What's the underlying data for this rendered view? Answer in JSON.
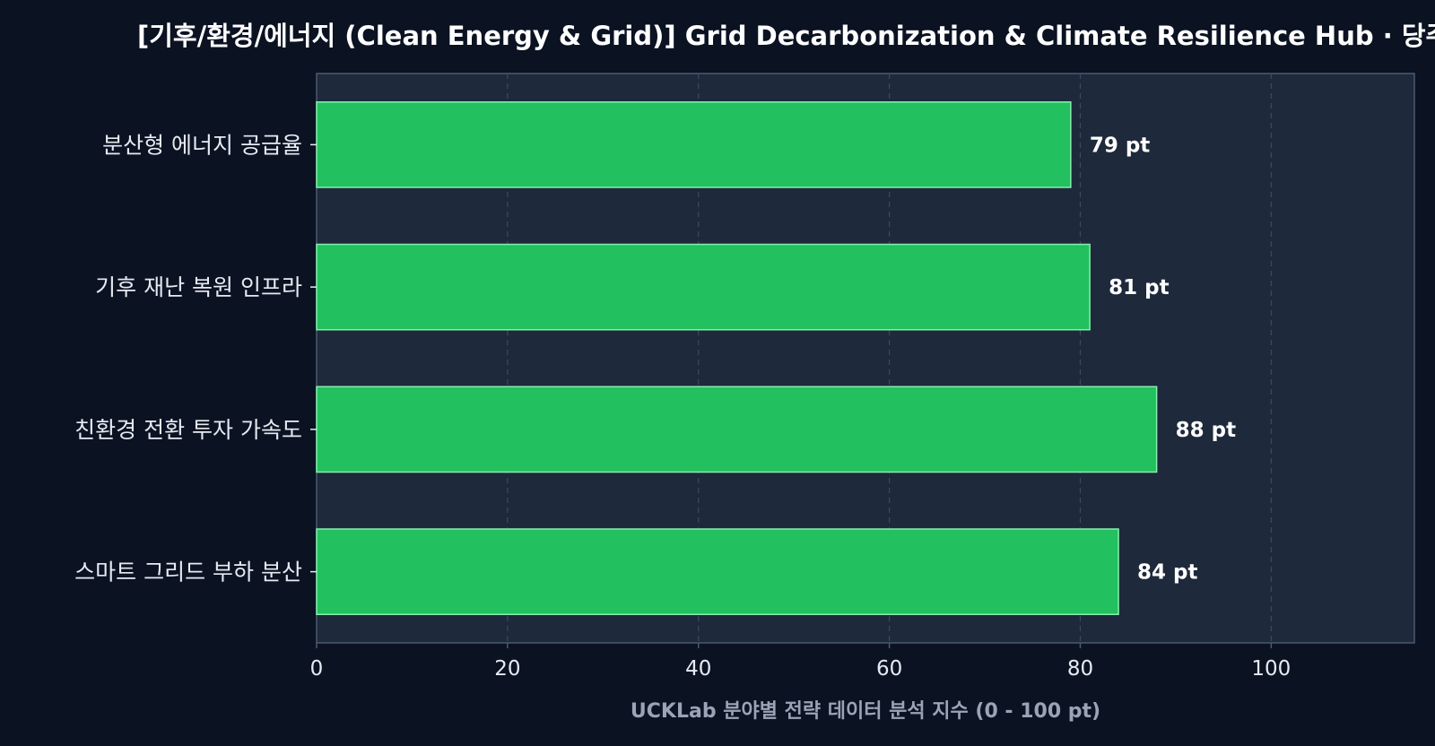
{
  "chart_data": {
    "type": "bar",
    "orientation": "horizontal",
    "title": "[기후/환경/에너지 (Clean Energy & Grid)] Grid Decarbonization & Climate Resilience Hub · 당주",
    "xlabel": "UCKLab 분야별 전략 데이터 분석 지수 (0 - 100 pt)",
    "ylabel": "",
    "categories": [
      "분산형 에너지 공급율",
      "기후 재난 복원 인프라",
      "친환경 전환 투자 가속도",
      "스마트 그리드 부하 분산"
    ],
    "values": [
      79,
      81,
      88,
      84
    ],
    "value_labels": [
      "79 pt",
      "81 pt",
      "88 pt",
      "84 pt"
    ],
    "xlim": [
      0,
      115
    ],
    "xticks": [
      0,
      20,
      40,
      60,
      80,
      100
    ],
    "xtick_labels": [
      "0",
      "20",
      "40",
      "60",
      "80",
      "100"
    ],
    "grid": "vertical dashed",
    "colors": {
      "background": "#0b1222",
      "plot_background": "#1e293b",
      "bar_fill": "#22c05e",
      "bar_edge": "#86efac",
      "grid": "#3b4a60",
      "text": "#e6ebf2",
      "xlabel": "#9aa4b6",
      "axis": "#4b5a70"
    }
  }
}
